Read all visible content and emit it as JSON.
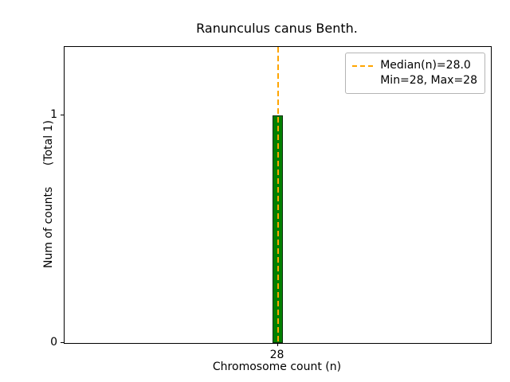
{
  "chart_data": {
    "type": "bar",
    "title": "Ranunculus canus Benth.",
    "xlabel": "Chromosome count (n)",
    "ylabel": "Num of counts      (Total 1)",
    "x": [
      28
    ],
    "counts": [
      1
    ],
    "bar_width": 0.024,
    "xticks": [
      28
    ],
    "yticks": [
      0,
      1
    ],
    "xlim": [
      27.5,
      28.5
    ],
    "ylim": [
      0,
      1.3
    ],
    "median": 28.0,
    "min": 28,
    "max": 28,
    "legend": [
      "Median(n)=28.0",
      "Min=28, Max=28"
    ],
    "legend_position": "upper right",
    "grid": false,
    "colors": {
      "bar_fill": "#008000",
      "bar_edge": "#0b2e0b",
      "median_line": "#FFA500"
    }
  }
}
